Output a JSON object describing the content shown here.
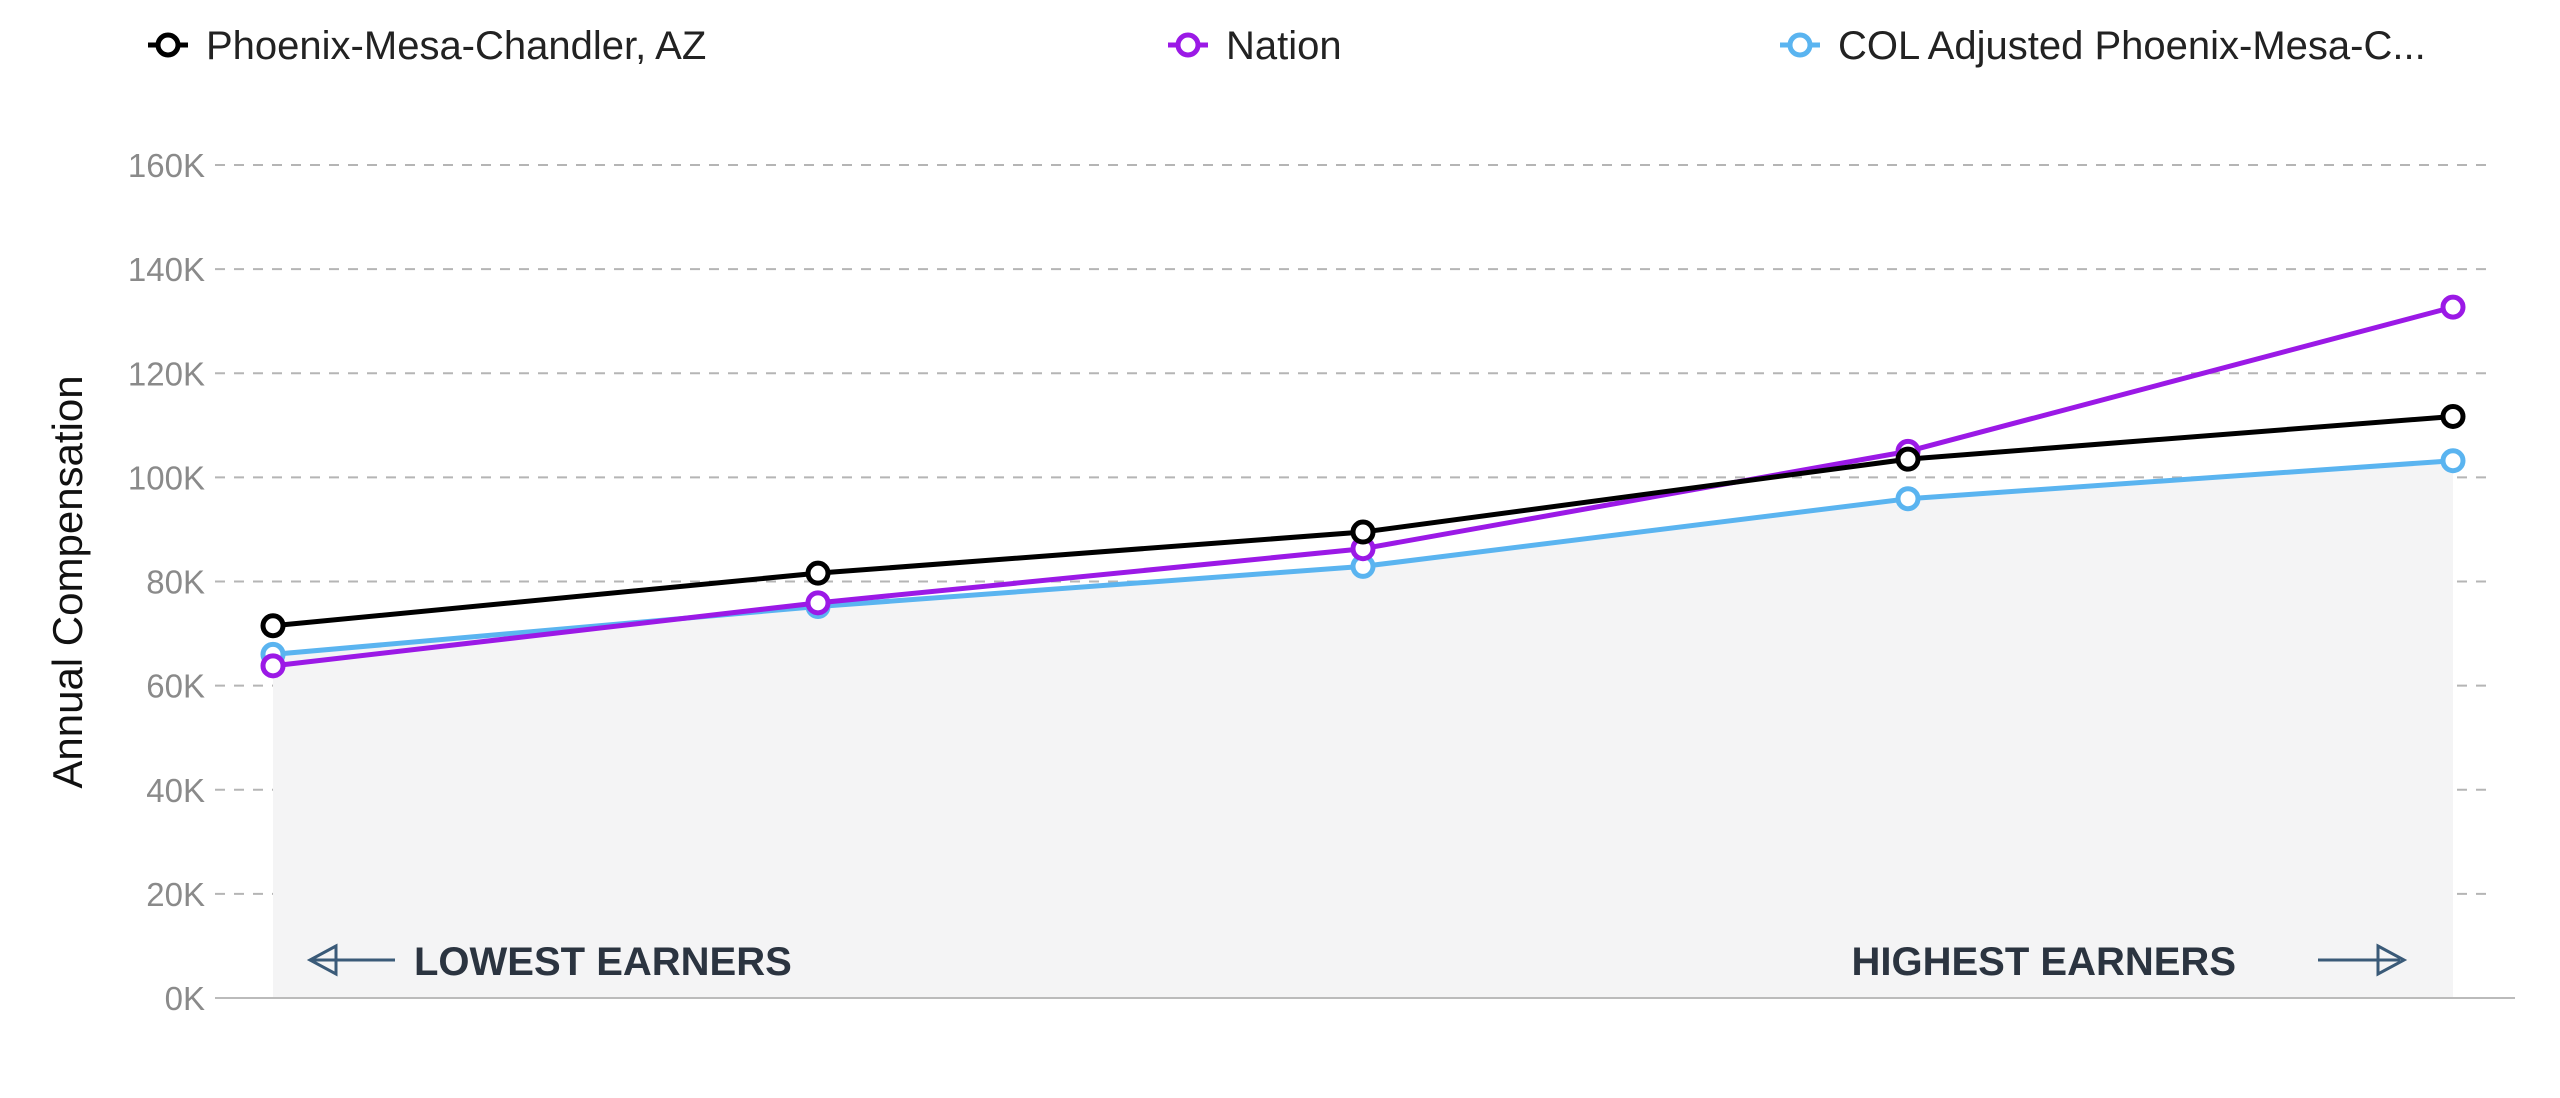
{
  "chart_data": {
    "type": "line",
    "title": "",
    "xlabel": "",
    "ylabel": "Annual Compensation",
    "ylim": [
      0,
      160000
    ],
    "yticks": [
      0,
      20000,
      40000,
      60000,
      80000,
      100000,
      120000,
      140000,
      160000
    ],
    "ytick_labels": [
      "0K",
      "20K",
      "40K",
      "60K",
      "80K",
      "100K",
      "120K",
      "140K",
      "160K"
    ],
    "grid": true,
    "legend_placement": "top",
    "annotations": {
      "left": "LOWEST EARNERS",
      "right": "HIGHEST EARNERS"
    },
    "area_fill_color": "#f4f4f5",
    "series": [
      {
        "name": "Phoenix-Mesa-Chandler, AZ",
        "color": "#000000",
        "values": [
          71500,
          81600,
          89500,
          103500,
          111700
        ]
      },
      {
        "name": "Nation",
        "color": "#9b19e6",
        "values": [
          63800,
          75900,
          86300,
          105000,
          132700
        ]
      },
      {
        "name": "COL Adjusted Phoenix-Mesa-C...",
        "color": "#5ab4f0",
        "values": [
          66000,
          75200,
          82900,
          95900,
          103200
        ]
      }
    ]
  }
}
